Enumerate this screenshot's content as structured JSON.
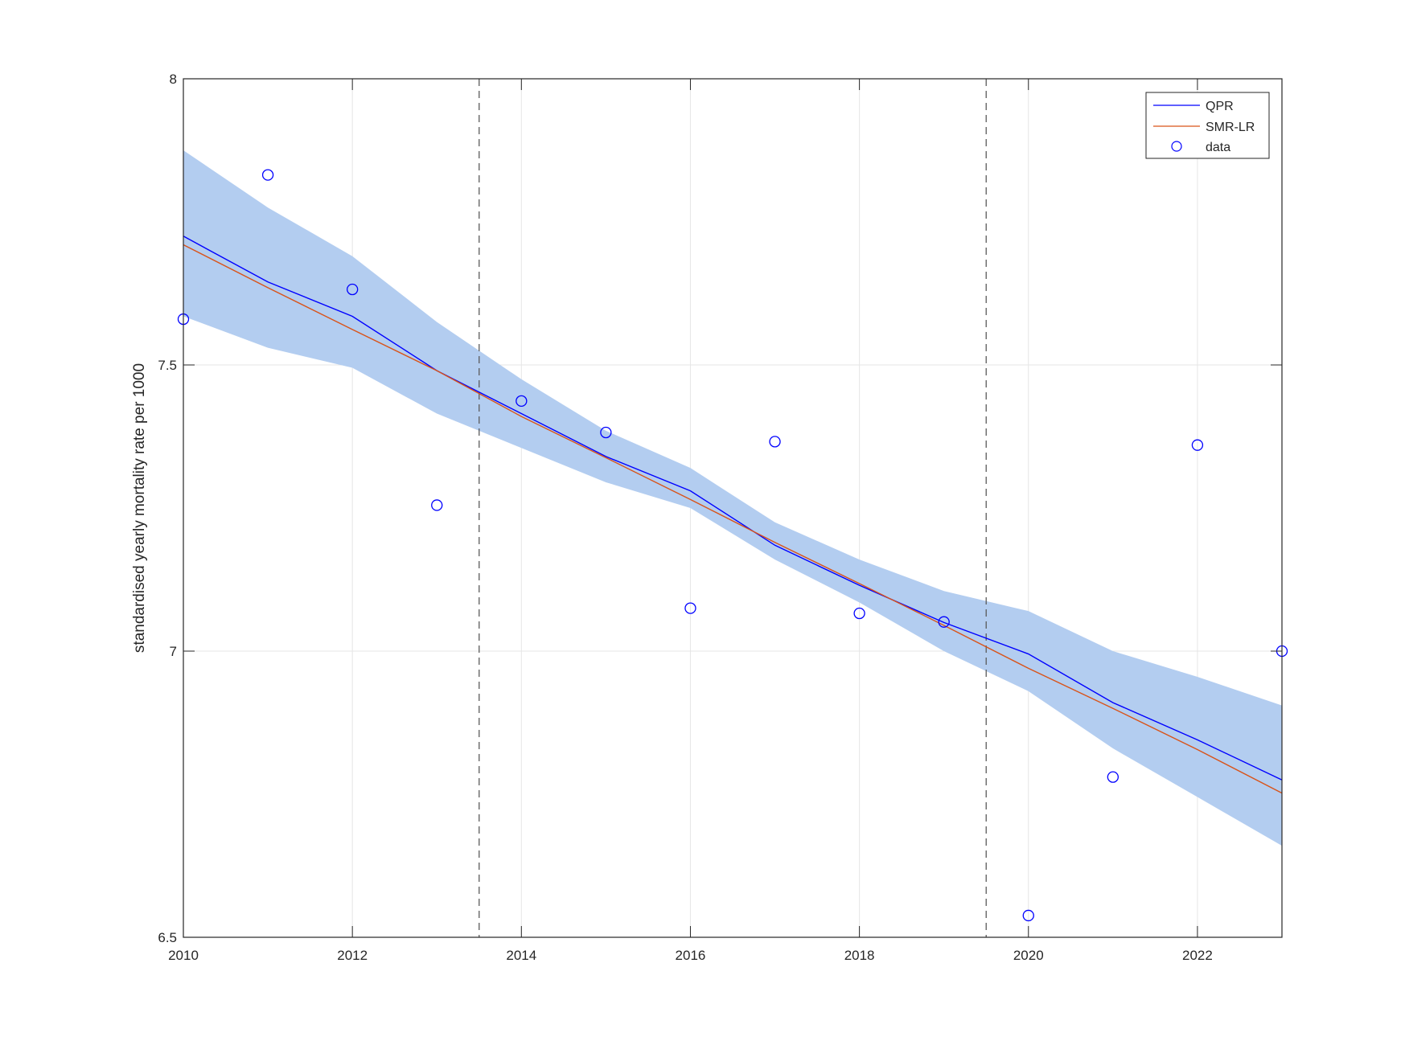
{
  "chart_data": {
    "type": "line",
    "title": "",
    "xlabel": "",
    "ylabel": "standardised yearly mortality rate per 1000",
    "xlim": [
      2010,
      2023
    ],
    "ylim": [
      6.5,
      8
    ],
    "xticks": [
      "2010",
      "2012",
      "2014",
      "2016",
      "2018",
      "2020",
      "2022"
    ],
    "yticks": [
      "6.5",
      "7",
      "7.5",
      "8"
    ],
    "grid": true,
    "legend_position": "top-right",
    "x": [
      2010,
      2011,
      2012,
      2013,
      2014,
      2015,
      2016,
      2017,
      2018,
      2019,
      2020,
      2021,
      2022,
      2023
    ],
    "series": [
      {
        "name": "QPR",
        "style": "line",
        "color": "#0000ff",
        "values": [
          7.725,
          7.645,
          7.585,
          7.49,
          7.415,
          7.34,
          7.28,
          7.185,
          7.115,
          7.05,
          6.995,
          6.91,
          6.845,
          6.775
        ]
      },
      {
        "name": "SMR-LR",
        "style": "line",
        "color": "#d95319",
        "values": [
          7.71,
          7.635,
          7.562,
          7.49,
          7.41,
          7.338,
          7.265,
          7.19,
          7.118,
          7.045,
          6.97,
          6.9,
          6.828,
          6.752
        ]
      },
      {
        "name": "data",
        "style": "marker",
        "marker": "circle",
        "color": "#0000ff",
        "values": [
          7.58,
          7.832,
          7.632,
          7.255,
          7.437,
          7.382,
          7.075,
          7.366,
          7.066,
          7.051,
          6.538,
          6.78,
          7.36,
          7.0
        ]
      }
    ],
    "confidence_band": {
      "color": "#b3cdf0",
      "lower": [
        7.585,
        7.53,
        7.495,
        7.415,
        7.355,
        7.295,
        7.25,
        7.16,
        7.085,
        7.0,
        6.93,
        6.83,
        6.745,
        6.66
      ],
      "upper": [
        7.875,
        7.775,
        7.69,
        7.575,
        7.475,
        7.385,
        7.32,
        7.225,
        7.16,
        7.105,
        7.07,
        7.0,
        6.955,
        6.905
      ]
    },
    "reference_lines_x": [
      2013.5,
      2019.5
    ]
  }
}
